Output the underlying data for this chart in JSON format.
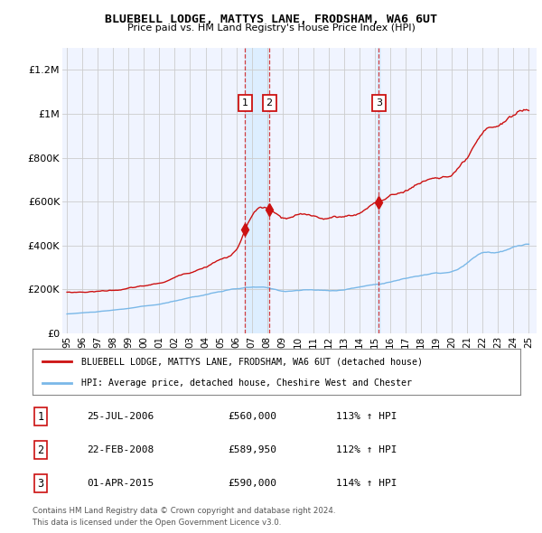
{
  "title": "BLUEBELL LODGE, MATTYS LANE, FRODSHAM, WA6 6UT",
  "subtitle": "Price paid vs. HM Land Registry's House Price Index (HPI)",
  "legend_line1": "BLUEBELL LODGE, MATTYS LANE, FRODSHAM, WA6 6UT (detached house)",
  "legend_line2": "HPI: Average price, detached house, Cheshire West and Chester",
  "footer1": "Contains HM Land Registry data © Crown copyright and database right 2024.",
  "footer2": "This data is licensed under the Open Government Licence v3.0.",
  "transactions": [
    {
      "num": 1,
      "date": "25-JUL-2006",
      "price": 560000,
      "hpi_pct": "113%",
      "x": 2006.56
    },
    {
      "num": 2,
      "date": "22-FEB-2008",
      "price": 589950,
      "hpi_pct": "112%",
      "x": 2008.14
    },
    {
      "num": 3,
      "date": "01-APR-2015",
      "price": 590000,
      "hpi_pct": "114%",
      "x": 2015.25
    }
  ],
  "hpi_color": "#7ab8e8",
  "price_color": "#cc1111",
  "shade_color": "#ddeeff",
  "background_color": "#ffffff",
  "chart_bg_color": "#f0f4ff",
  "grid_color": "#cccccc",
  "ylim": [
    0,
    1300000
  ],
  "xlim": [
    1994.7,
    2025.5
  ],
  "yticks": [
    0,
    200000,
    400000,
    600000,
    800000,
    1000000,
    1200000
  ],
  "ytick_labels": [
    "£0",
    "£200K",
    "£400K",
    "£600K",
    "£800K",
    "£1M",
    "£1.2M"
  ],
  "xticks": [
    1995,
    1996,
    1997,
    1998,
    1999,
    2000,
    2001,
    2002,
    2003,
    2004,
    2005,
    2006,
    2007,
    2008,
    2009,
    2010,
    2011,
    2012,
    2013,
    2014,
    2015,
    2016,
    2017,
    2018,
    2019,
    2020,
    2021,
    2022,
    2023,
    2024,
    2025
  ],
  "xtick_labels": [
    "95",
    "96",
    "97",
    "98",
    "99",
    "00",
    "01",
    "02",
    "03",
    "04",
    "05",
    "06",
    "07",
    "08",
    "09",
    "10",
    "11",
    "12",
    "13",
    "14",
    "15",
    "16",
    "17",
    "18",
    "19",
    "20",
    "21",
    "22",
    "23",
    "24",
    "25"
  ]
}
